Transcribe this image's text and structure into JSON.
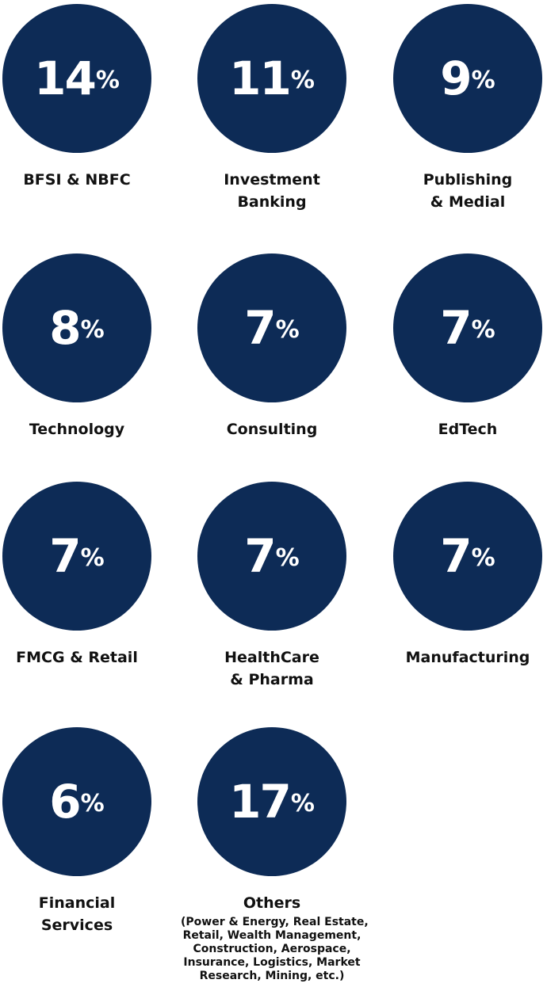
{
  "colors": {
    "circle_fill": "#0d2b56",
    "text_on_circle": "#ffffff",
    "label_text": "#111111"
  },
  "chart_data": {
    "type": "table",
    "unit": "%",
    "items": [
      {
        "value": 14,
        "value_label": "14",
        "label_lines": [
          "BFSI & NBFC"
        ]
      },
      {
        "value": 11,
        "value_label": "11",
        "label_lines": [
          "Investment",
          "Banking"
        ]
      },
      {
        "value": 9,
        "value_label": "9",
        "label_lines": [
          "Publishing",
          "& Medial"
        ]
      },
      {
        "value": 8,
        "value_label": "8",
        "label_lines": [
          "Technology"
        ]
      },
      {
        "value": 7,
        "value_label": "7",
        "label_lines": [
          "Consulting"
        ]
      },
      {
        "value": 7,
        "value_label": "7",
        "label_lines": [
          "EdTech"
        ]
      },
      {
        "value": 7,
        "value_label": "7",
        "label_lines": [
          "FMCG & Retail"
        ]
      },
      {
        "value": 7,
        "value_label": "7",
        "label_lines": [
          "HealthCare",
          "& Pharma"
        ]
      },
      {
        "value": 7,
        "value_label": "7",
        "label_lines": [
          "Manufacturing"
        ]
      },
      {
        "value": 6,
        "value_label": "6",
        "label_lines": [
          "Financial",
          "Services"
        ]
      },
      {
        "value": 17,
        "value_label": "17",
        "label_lines": [
          "Others"
        ],
        "sub_lines": [
          "(Power & Energy, Real Estate,",
          "Retail, Wealth Management,",
          "Construction, Aerospace,",
          "Insurance, Logistics, Market",
          "Research, Mining, etc.)"
        ]
      }
    ]
  }
}
